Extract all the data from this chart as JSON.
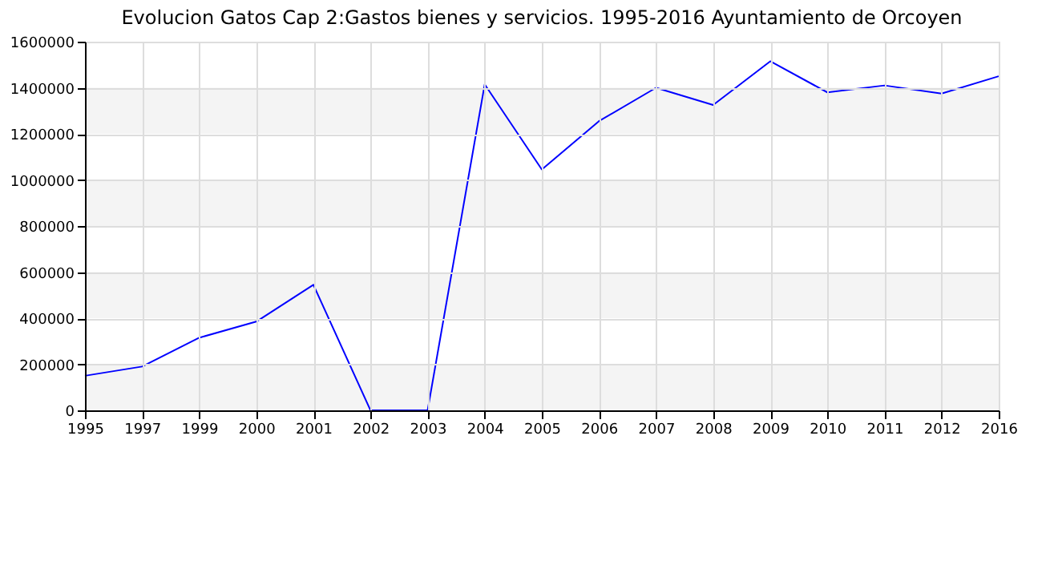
{
  "chart_data": {
    "type": "line",
    "title": "Evolucion Gatos Cap 2:Gastos bienes y servicios. 1995-2016 Ayuntamiento de Orcoyen",
    "categories": [
      "1995",
      "1997",
      "1999",
      "2000",
      "2001",
      "2002",
      "2003",
      "2004",
      "2005",
      "2006",
      "2007",
      "2008",
      "2009",
      "2010",
      "2011",
      "2012",
      "2016"
    ],
    "series": [
      {
        "color": "#0000ff",
        "values": [
          150000,
          190000,
          315000,
          385000,
          545000,
          0,
          0,
          1415000,
          1045000,
          1255000,
          1400000,
          1325000,
          1515000,
          1380000,
          1410000,
          1375000,
          1450000
        ]
      }
    ],
    "ylim": [
      0,
      1600000
    ],
    "yticks": [
      0,
      200000,
      400000,
      600000,
      800000,
      1000000,
      1200000,
      1400000,
      1600000
    ],
    "bands": [
      {
        "axis": "y",
        "from": 0,
        "to": 200000,
        "color": "#f4f4f4"
      },
      {
        "axis": "y",
        "from": 400000,
        "to": 600000,
        "color": "#f4f4f4"
      },
      {
        "axis": "y",
        "from": 800000,
        "to": 1000000,
        "color": "#f4f4f4"
      },
      {
        "axis": "y",
        "from": 1200000,
        "to": 1400000,
        "color": "#f4f4f4"
      }
    ],
    "grid": true,
    "marker": "none",
    "line_style": "solid"
  }
}
